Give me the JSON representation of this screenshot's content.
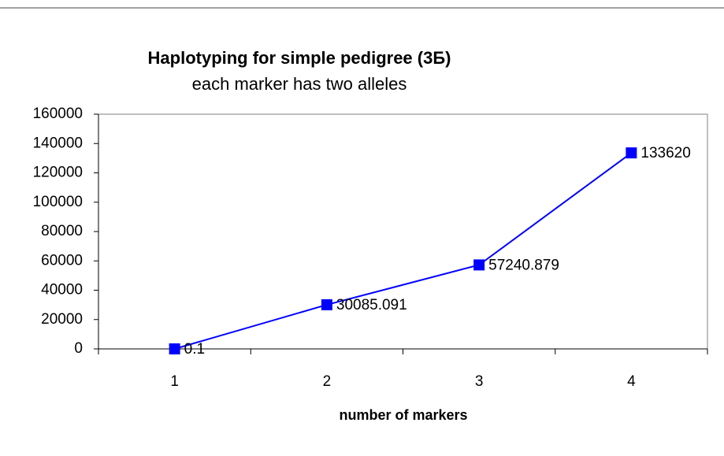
{
  "chart_data": {
    "type": "line",
    "title": "Haplotyping for simple pedigree (3Б)",
    "subtitle": "each marker has two alleles",
    "x_label": "number of markers",
    "categories": [
      "1",
      "2",
      "3",
      "4"
    ],
    "values": [
      0.1,
      30085.091,
      57240.879,
      133620
    ],
    "color": "#0000ff",
    "ylim": [
      0,
      160000
    ],
    "yticks": [
      0,
      20000,
      40000,
      60000,
      80000,
      100000,
      120000,
      140000,
      160000
    ],
    "grid": false
  }
}
